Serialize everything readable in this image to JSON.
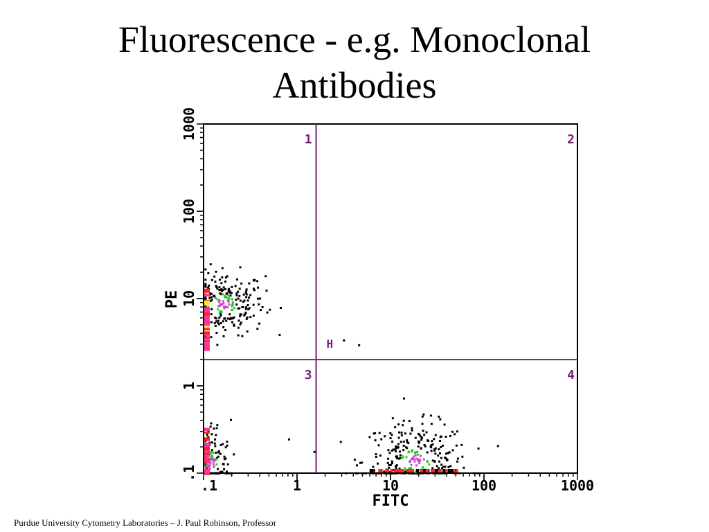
{
  "slide": {
    "title_line1": "Fluorescence - e.g. Monoclonal",
    "title_line2": "Antibodies",
    "footer": "Purdue University Cytometry Laboratories – J. Paul Robinson, Professor"
  },
  "chart_data": {
    "type": "scatter",
    "title": "",
    "xlabel": "FITC",
    "ylabel": "PE",
    "xscale": "log",
    "yscale": "log",
    "xlim": [
      0.1,
      1000
    ],
    "ylim": [
      0.1,
      1000
    ],
    "xticks": [
      ".1",
      "1",
      "10",
      "100",
      "1000"
    ],
    "yticks": [
      ".1",
      "1",
      "10",
      "100",
      "1000"
    ],
    "grid": false,
    "quadrant_gates": {
      "x": 1.6,
      "y": 2.0,
      "color": "#7a1a7a"
    },
    "quadrant_labels": [
      "1",
      "2",
      "3",
      "4"
    ],
    "gate_marker": "H",
    "density_colors": {
      "low": "#000000",
      "mid": "#22cc22",
      "high": "#cc44cc",
      "higher": "#ff2222",
      "highest": "#ffee22",
      "peak": "#ff3399"
    },
    "populations": [
      {
        "name": "",
        "x_center": 0.16,
        "y_center": 9,
        "x_spread": 0.22,
        "y_spread": 0.18,
        "count": 260
      },
      {
        "name": "",
        "x_center": 18,
        "y_center": 0.14,
        "x_spread": 0.28,
        "y_spread": 0.22,
        "count": 300
      },
      {
        "name": "",
        "x_center": 0.12,
        "y_center": 0.13,
        "x_spread": 0.1,
        "y_spread": 0.25,
        "count": 140
      }
    ],
    "scatter_points": [
      [
        3.1,
        3.4
      ],
      [
        4.5,
        3.0
      ],
      [
        0.16,
        3.8
      ],
      [
        0.8,
        0.25
      ],
      [
        1.5,
        0.18
      ]
    ]
  }
}
